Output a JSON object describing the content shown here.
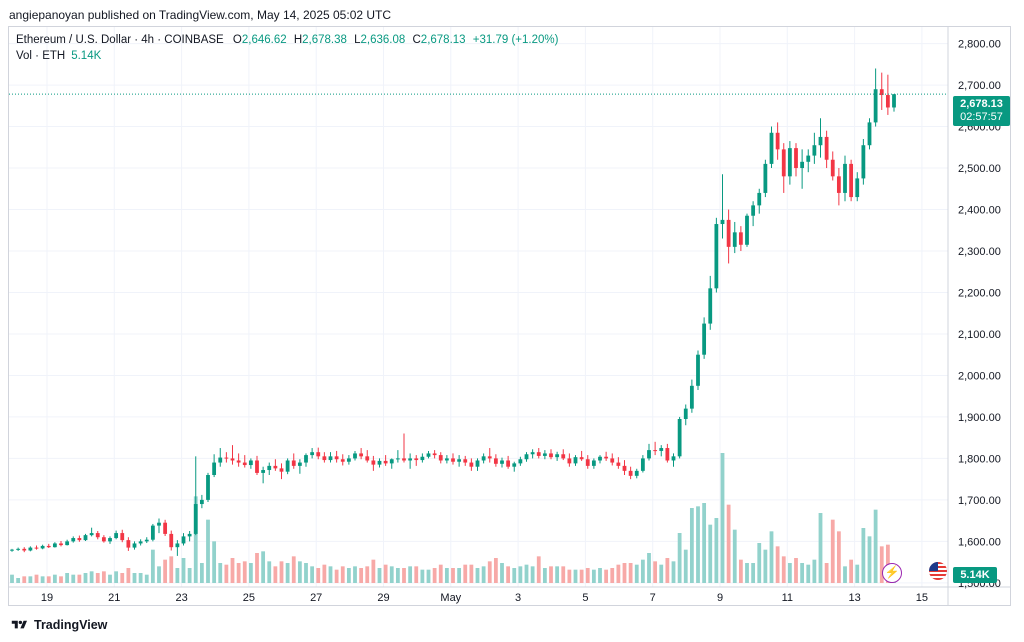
{
  "header": {
    "published": "angiepanoyan published on TradingView.com, May 14, 2025 05:02 UTC"
  },
  "legend": {
    "symbol": "Ethereum / U.S. Dollar · 4h · COINBASE",
    "o_label": "O",
    "o": "2,646.62",
    "h_label": "H",
    "h": "2,678.38",
    "l_label": "L",
    "l": "2,636.08",
    "c_label": "C",
    "c": "2,678.13",
    "change": "+31.79 (+1.20%)",
    "vol_label": "Vol · ETH",
    "vol": "5.14K"
  },
  "price_tag": {
    "price": "2,678.13",
    "countdown": "02:57:57"
  },
  "volume_tag": "5.14K",
  "footer": {
    "brand": "TradingView"
  },
  "icons": [
    "us-flag-icon",
    "lightning-icon",
    "tradingview-logo-icon"
  ],
  "colors": {
    "up": "#089981",
    "down": "#f23645",
    "vol_up": "#92d2cc",
    "vol_down": "#f7a9a7",
    "grid": "#f0f3fa"
  },
  "chart_data": {
    "type": "candlestick",
    "interval": "4h",
    "ylim": [
      1490,
      2840
    ],
    "y_ticks": [
      "2,800.00",
      "2,700.00",
      "2,600.00",
      "2,500.00",
      "2,400.00",
      "2,300.00",
      "2,200.00",
      "2,100.00",
      "2,000.00",
      "1,900.00",
      "1,800.00",
      "1,700.00",
      "1,600.00",
      "1,500.00"
    ],
    "x_ticks": [
      "19",
      "21",
      "23",
      "25",
      "27",
      "29",
      "May",
      "3",
      "5",
      "7",
      "9",
      "11",
      "13",
      "15"
    ],
    "last_close": 2678.13,
    "candles": [
      {
        "o": 1578,
        "h": 1582,
        "l": 1575,
        "c": 1580,
        "v": 5
      },
      {
        "o": 1580,
        "h": 1585,
        "l": 1577,
        "c": 1582,
        "v": 3
      },
      {
        "o": 1582,
        "h": 1586,
        "l": 1574,
        "c": 1578,
        "v": 4
      },
      {
        "o": 1578,
        "h": 1588,
        "l": 1576,
        "c": 1585,
        "v": 4
      },
      {
        "o": 1585,
        "h": 1590,
        "l": 1580,
        "c": 1583,
        "v": 5
      },
      {
        "o": 1583,
        "h": 1592,
        "l": 1581,
        "c": 1589,
        "v": 4
      },
      {
        "o": 1589,
        "h": 1594,
        "l": 1584,
        "c": 1586,
        "v": 4
      },
      {
        "o": 1586,
        "h": 1598,
        "l": 1585,
        "c": 1595,
        "v": 5
      },
      {
        "o": 1595,
        "h": 1601,
        "l": 1588,
        "c": 1591,
        "v": 4
      },
      {
        "o": 1591,
        "h": 1604,
        "l": 1590,
        "c": 1600,
        "v": 6
      },
      {
        "o": 1600,
        "h": 1612,
        "l": 1597,
        "c": 1608,
        "v": 5
      },
      {
        "o": 1608,
        "h": 1614,
        "l": 1599,
        "c": 1603,
        "v": 5
      },
      {
        "o": 1603,
        "h": 1618,
        "l": 1601,
        "c": 1615,
        "v": 6
      },
      {
        "o": 1615,
        "h": 1633,
        "l": 1612,
        "c": 1620,
        "v": 7
      },
      {
        "o": 1620,
        "h": 1625,
        "l": 1605,
        "c": 1610,
        "v": 6
      },
      {
        "o": 1610,
        "h": 1615,
        "l": 1597,
        "c": 1600,
        "v": 7
      },
      {
        "o": 1600,
        "h": 1612,
        "l": 1594,
        "c": 1608,
        "v": 5
      },
      {
        "o": 1608,
        "h": 1626,
        "l": 1605,
        "c": 1620,
        "v": 7
      },
      {
        "o": 1620,
        "h": 1628,
        "l": 1598,
        "c": 1603,
        "v": 6
      },
      {
        "o": 1603,
        "h": 1610,
        "l": 1577,
        "c": 1585,
        "v": 9
      },
      {
        "o": 1585,
        "h": 1600,
        "l": 1580,
        "c": 1595,
        "v": 6
      },
      {
        "o": 1595,
        "h": 1605,
        "l": 1590,
        "c": 1600,
        "v": 6
      },
      {
        "o": 1600,
        "h": 1610,
        "l": 1596,
        "c": 1604,
        "v": 5
      },
      {
        "o": 1604,
        "h": 1642,
        "l": 1600,
        "c": 1638,
        "v": 20
      },
      {
        "o": 1638,
        "h": 1655,
        "l": 1620,
        "c": 1645,
        "v": 10
      },
      {
        "o": 1645,
        "h": 1652,
        "l": 1613,
        "c": 1618,
        "v": 14
      },
      {
        "o": 1618,
        "h": 1626,
        "l": 1578,
        "c": 1586,
        "v": 16
      },
      {
        "o": 1586,
        "h": 1603,
        "l": 1565,
        "c": 1595,
        "v": 9
      },
      {
        "o": 1595,
        "h": 1620,
        "l": 1590,
        "c": 1612,
        "v": 15
      },
      {
        "o": 1612,
        "h": 1625,
        "l": 1600,
        "c": 1618,
        "v": 9
      },
      {
        "o": 1618,
        "h": 1805,
        "l": 1615,
        "c": 1690,
        "v": 52
      },
      {
        "o": 1690,
        "h": 1712,
        "l": 1680,
        "c": 1700,
        "v": 12
      },
      {
        "o": 1700,
        "h": 1765,
        "l": 1695,
        "c": 1760,
        "v": 38
      },
      {
        "o": 1760,
        "h": 1810,
        "l": 1755,
        "c": 1790,
        "v": 25
      },
      {
        "o": 1790,
        "h": 1825,
        "l": 1780,
        "c": 1802,
        "v": 12
      },
      {
        "o": 1802,
        "h": 1815,
        "l": 1790,
        "c": 1800,
        "v": 11
      },
      {
        "o": 1800,
        "h": 1832,
        "l": 1785,
        "c": 1795,
        "v": 15
      },
      {
        "o": 1795,
        "h": 1812,
        "l": 1780,
        "c": 1790,
        "v": 12
      },
      {
        "o": 1790,
        "h": 1808,
        "l": 1778,
        "c": 1784,
        "v": 13
      },
      {
        "o": 1784,
        "h": 1800,
        "l": 1775,
        "c": 1795,
        "v": 12
      },
      {
        "o": 1795,
        "h": 1806,
        "l": 1760,
        "c": 1765,
        "v": 18
      },
      {
        "o": 1765,
        "h": 1780,
        "l": 1740,
        "c": 1772,
        "v": 19
      },
      {
        "o": 1772,
        "h": 1790,
        "l": 1760,
        "c": 1782,
        "v": 13
      },
      {
        "o": 1782,
        "h": 1798,
        "l": 1770,
        "c": 1776,
        "v": 10
      },
      {
        "o": 1776,
        "h": 1788,
        "l": 1750,
        "c": 1768,
        "v": 13
      },
      {
        "o": 1768,
        "h": 1800,
        "l": 1762,
        "c": 1795,
        "v": 12
      },
      {
        "o": 1795,
        "h": 1812,
        "l": 1775,
        "c": 1782,
        "v": 16
      },
      {
        "o": 1782,
        "h": 1798,
        "l": 1763,
        "c": 1790,
        "v": 13
      },
      {
        "o": 1790,
        "h": 1812,
        "l": 1780,
        "c": 1808,
        "v": 12
      },
      {
        "o": 1808,
        "h": 1825,
        "l": 1800,
        "c": 1815,
        "v": 10
      },
      {
        "o": 1815,
        "h": 1826,
        "l": 1798,
        "c": 1805,
        "v": 9
      },
      {
        "o": 1805,
        "h": 1815,
        "l": 1790,
        "c": 1796,
        "v": 11
      },
      {
        "o": 1796,
        "h": 1815,
        "l": 1790,
        "c": 1805,
        "v": 10
      },
      {
        "o": 1805,
        "h": 1818,
        "l": 1790,
        "c": 1798,
        "v": 8
      },
      {
        "o": 1798,
        "h": 1810,
        "l": 1783,
        "c": 1792,
        "v": 10
      },
      {
        "o": 1792,
        "h": 1808,
        "l": 1785,
        "c": 1800,
        "v": 9
      },
      {
        "o": 1800,
        "h": 1818,
        "l": 1795,
        "c": 1812,
        "v": 10
      },
      {
        "o": 1812,
        "h": 1825,
        "l": 1798,
        "c": 1805,
        "v": 9
      },
      {
        "o": 1805,
        "h": 1820,
        "l": 1790,
        "c": 1795,
        "v": 10
      },
      {
        "o": 1795,
        "h": 1806,
        "l": 1770,
        "c": 1785,
        "v": 14
      },
      {
        "o": 1785,
        "h": 1800,
        "l": 1778,
        "c": 1794,
        "v": 9
      },
      {
        "o": 1794,
        "h": 1808,
        "l": 1782,
        "c": 1788,
        "v": 11
      },
      {
        "o": 1788,
        "h": 1800,
        "l": 1775,
        "c": 1798,
        "v": 10
      },
      {
        "o": 1798,
        "h": 1820,
        "l": 1790,
        "c": 1800,
        "v": 9
      },
      {
        "o": 1800,
        "h": 1860,
        "l": 1790,
        "c": 1795,
        "v": 9
      },
      {
        "o": 1795,
        "h": 1812,
        "l": 1775,
        "c": 1800,
        "v": 10
      },
      {
        "o": 1800,
        "h": 1808,
        "l": 1782,
        "c": 1796,
        "v": 10
      },
      {
        "o": 1796,
        "h": 1812,
        "l": 1790,
        "c": 1804,
        "v": 8
      },
      {
        "o": 1804,
        "h": 1818,
        "l": 1800,
        "c": 1812,
        "v": 8
      },
      {
        "o": 1812,
        "h": 1820,
        "l": 1800,
        "c": 1808,
        "v": 9
      },
      {
        "o": 1808,
        "h": 1815,
        "l": 1788,
        "c": 1795,
        "v": 11
      },
      {
        "o": 1795,
        "h": 1808,
        "l": 1788,
        "c": 1800,
        "v": 9
      },
      {
        "o": 1800,
        "h": 1812,
        "l": 1785,
        "c": 1792,
        "v": 9
      },
      {
        "o": 1792,
        "h": 1808,
        "l": 1780,
        "c": 1798,
        "v": 9
      },
      {
        "o": 1798,
        "h": 1806,
        "l": 1782,
        "c": 1790,
        "v": 11
      },
      {
        "o": 1790,
        "h": 1800,
        "l": 1770,
        "c": 1780,
        "v": 11
      },
      {
        "o": 1780,
        "h": 1800,
        "l": 1770,
        "c": 1795,
        "v": 9
      },
      {
        "o": 1795,
        "h": 1812,
        "l": 1788,
        "c": 1805,
        "v": 10
      },
      {
        "o": 1805,
        "h": 1825,
        "l": 1790,
        "c": 1800,
        "v": 13
      },
      {
        "o": 1800,
        "h": 1810,
        "l": 1780,
        "c": 1787,
        "v": 15
      },
      {
        "o": 1787,
        "h": 1802,
        "l": 1778,
        "c": 1795,
        "v": 12
      },
      {
        "o": 1795,
        "h": 1806,
        "l": 1775,
        "c": 1780,
        "v": 10
      },
      {
        "o": 1780,
        "h": 1792,
        "l": 1768,
        "c": 1788,
        "v": 9
      },
      {
        "o": 1788,
        "h": 1804,
        "l": 1782,
        "c": 1798,
        "v": 10
      },
      {
        "o": 1798,
        "h": 1815,
        "l": 1792,
        "c": 1810,
        "v": 11
      },
      {
        "o": 1810,
        "h": 1822,
        "l": 1800,
        "c": 1815,
        "v": 10
      },
      {
        "o": 1815,
        "h": 1825,
        "l": 1800,
        "c": 1806,
        "v": 16
      },
      {
        "o": 1806,
        "h": 1820,
        "l": 1798,
        "c": 1812,
        "v": 9
      },
      {
        "o": 1812,
        "h": 1822,
        "l": 1798,
        "c": 1803,
        "v": 10
      },
      {
        "o": 1803,
        "h": 1816,
        "l": 1794,
        "c": 1810,
        "v": 10
      },
      {
        "o": 1810,
        "h": 1822,
        "l": 1796,
        "c": 1800,
        "v": 10
      },
      {
        "o": 1800,
        "h": 1812,
        "l": 1780,
        "c": 1788,
        "v": 8
      },
      {
        "o": 1788,
        "h": 1808,
        "l": 1782,
        "c": 1803,
        "v": 8
      },
      {
        "o": 1803,
        "h": 1818,
        "l": 1794,
        "c": 1798,
        "v": 8
      },
      {
        "o": 1798,
        "h": 1808,
        "l": 1775,
        "c": 1782,
        "v": 9
      },
      {
        "o": 1782,
        "h": 1800,
        "l": 1775,
        "c": 1795,
        "v": 8
      },
      {
        "o": 1795,
        "h": 1808,
        "l": 1788,
        "c": 1804,
        "v": 9
      },
      {
        "o": 1804,
        "h": 1816,
        "l": 1794,
        "c": 1800,
        "v": 8
      },
      {
        "o": 1800,
        "h": 1812,
        "l": 1783,
        "c": 1790,
        "v": 9
      },
      {
        "o": 1790,
        "h": 1803,
        "l": 1775,
        "c": 1782,
        "v": 11
      },
      {
        "o": 1782,
        "h": 1796,
        "l": 1760,
        "c": 1770,
        "v": 12
      },
      {
        "o": 1770,
        "h": 1780,
        "l": 1750,
        "c": 1758,
        "v": 12
      },
      {
        "o": 1758,
        "h": 1775,
        "l": 1752,
        "c": 1770,
        "v": 11
      },
      {
        "o": 1770,
        "h": 1808,
        "l": 1766,
        "c": 1800,
        "v": 14
      },
      {
        "o": 1800,
        "h": 1835,
        "l": 1795,
        "c": 1820,
        "v": 18
      },
      {
        "o": 1820,
        "h": 1840,
        "l": 1808,
        "c": 1818,
        "v": 13
      },
      {
        "o": 1818,
        "h": 1832,
        "l": 1805,
        "c": 1825,
        "v": 11
      },
      {
        "o": 1825,
        "h": 1835,
        "l": 1790,
        "c": 1795,
        "v": 15
      },
      {
        "o": 1795,
        "h": 1812,
        "l": 1780,
        "c": 1805,
        "v": 13
      },
      {
        "o": 1805,
        "h": 1900,
        "l": 1800,
        "c": 1895,
        "v": 30
      },
      {
        "o": 1895,
        "h": 1930,
        "l": 1880,
        "c": 1920,
        "v": 20
      },
      {
        "o": 1920,
        "h": 1990,
        "l": 1910,
        "c": 1975,
        "v": 45
      },
      {
        "o": 1975,
        "h": 2060,
        "l": 1965,
        "c": 2050,
        "v": 46
      },
      {
        "o": 2050,
        "h": 2140,
        "l": 2040,
        "c": 2125,
        "v": 48
      },
      {
        "o": 2125,
        "h": 2240,
        "l": 2110,
        "c": 2210,
        "v": 35
      },
      {
        "o": 2210,
        "h": 2380,
        "l": 2200,
        "c": 2365,
        "v": 39
      },
      {
        "o": 2365,
        "h": 2485,
        "l": 2330,
        "c": 2375,
        "v": 78
      },
      {
        "o": 2375,
        "h": 2400,
        "l": 2270,
        "c": 2310,
        "v": 47
      },
      {
        "o": 2310,
        "h": 2370,
        "l": 2295,
        "c": 2345,
        "v": 32
      },
      {
        "o": 2345,
        "h": 2360,
        "l": 2300,
        "c": 2315,
        "v": 14
      },
      {
        "o": 2315,
        "h": 2390,
        "l": 2310,
        "c": 2385,
        "v": 12
      },
      {
        "o": 2385,
        "h": 2420,
        "l": 2360,
        "c": 2410,
        "v": 12
      },
      {
        "o": 2410,
        "h": 2450,
        "l": 2390,
        "c": 2440,
        "v": 24
      },
      {
        "o": 2440,
        "h": 2520,
        "l": 2430,
        "c": 2510,
        "v": 20
      },
      {
        "o": 2510,
        "h": 2600,
        "l": 2500,
        "c": 2585,
        "v": 31
      },
      {
        "o": 2585,
        "h": 2610,
        "l": 2520,
        "c": 2545,
        "v": 22
      },
      {
        "o": 2545,
        "h": 2560,
        "l": 2440,
        "c": 2480,
        "v": 16
      },
      {
        "o": 2480,
        "h": 2565,
        "l": 2460,
        "c": 2548,
        "v": 12
      },
      {
        "o": 2548,
        "h": 2560,
        "l": 2480,
        "c": 2500,
        "v": 15
      },
      {
        "o": 2500,
        "h": 2545,
        "l": 2450,
        "c": 2515,
        "v": 12
      },
      {
        "o": 2515,
        "h": 2545,
        "l": 2490,
        "c": 2530,
        "v": 11
      },
      {
        "o": 2530,
        "h": 2585,
        "l": 2510,
        "c": 2555,
        "v": 14
      },
      {
        "o": 2555,
        "h": 2620,
        "l": 2525,
        "c": 2575,
        "v": 42
      },
      {
        "o": 2575,
        "h": 2590,
        "l": 2500,
        "c": 2520,
        "v": 12
      },
      {
        "o": 2520,
        "h": 2540,
        "l": 2470,
        "c": 2480,
        "v": 38
      },
      {
        "o": 2480,
        "h": 2500,
        "l": 2410,
        "c": 2440,
        "v": 31
      },
      {
        "o": 2440,
        "h": 2530,
        "l": 2420,
        "c": 2510,
        "v": 10
      },
      {
        "o": 2510,
        "h": 2520,
        "l": 2420,
        "c": 2430,
        "v": 14
      },
      {
        "o": 2430,
        "h": 2490,
        "l": 2420,
        "c": 2475,
        "v": 11
      },
      {
        "o": 2475,
        "h": 2570,
        "l": 2460,
        "c": 2555,
        "v": 33
      },
      {
        "o": 2555,
        "h": 2620,
        "l": 2545,
        "c": 2610,
        "v": 28
      },
      {
        "o": 2610,
        "h": 2740,
        "l": 2600,
        "c": 2690,
        "v": 44
      },
      {
        "o": 2690,
        "h": 2730,
        "l": 2640,
        "c": 2676,
        "v": 22
      },
      {
        "o": 2676,
        "h": 2725,
        "l": 2628,
        "c": 2646,
        "v": 23
      },
      {
        "o": 2646,
        "h": 2678,
        "l": 2636,
        "c": 2678,
        "v": 5
      }
    ]
  }
}
